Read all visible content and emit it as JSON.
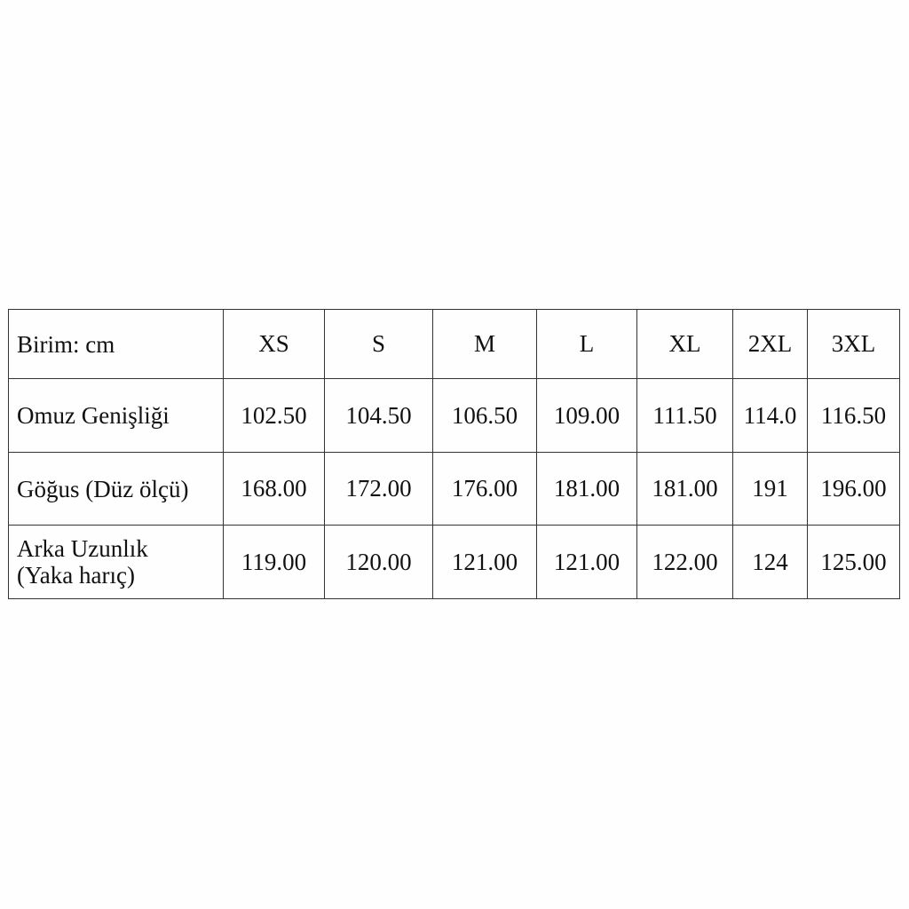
{
  "table": {
    "corner": "Birim: cm",
    "sizes": [
      "XS",
      "S",
      "M",
      "L",
      "XL",
      "2XL",
      "3XL"
    ],
    "rows": [
      {
        "label": "Omuz Genişliği",
        "values": [
          "102.50",
          "104.50",
          "106.50",
          "109.00",
          "111.50",
          "114.0",
          "116.50"
        ]
      },
      {
        "label": "Göğus (Düz ölçü)",
        "values": [
          "168.00",
          "172.00",
          "176.00",
          "181.00",
          "181.00",
          "191",
          "196.00"
        ]
      },
      {
        "label_line1": "Arka Uzunlık",
        "label_line2": "(Yaka harıç)",
        "values": [
          "119.00",
          "120.00",
          "121.00",
          "121.00",
          "122.00",
          "124",
          "125.00"
        ]
      }
    ]
  }
}
